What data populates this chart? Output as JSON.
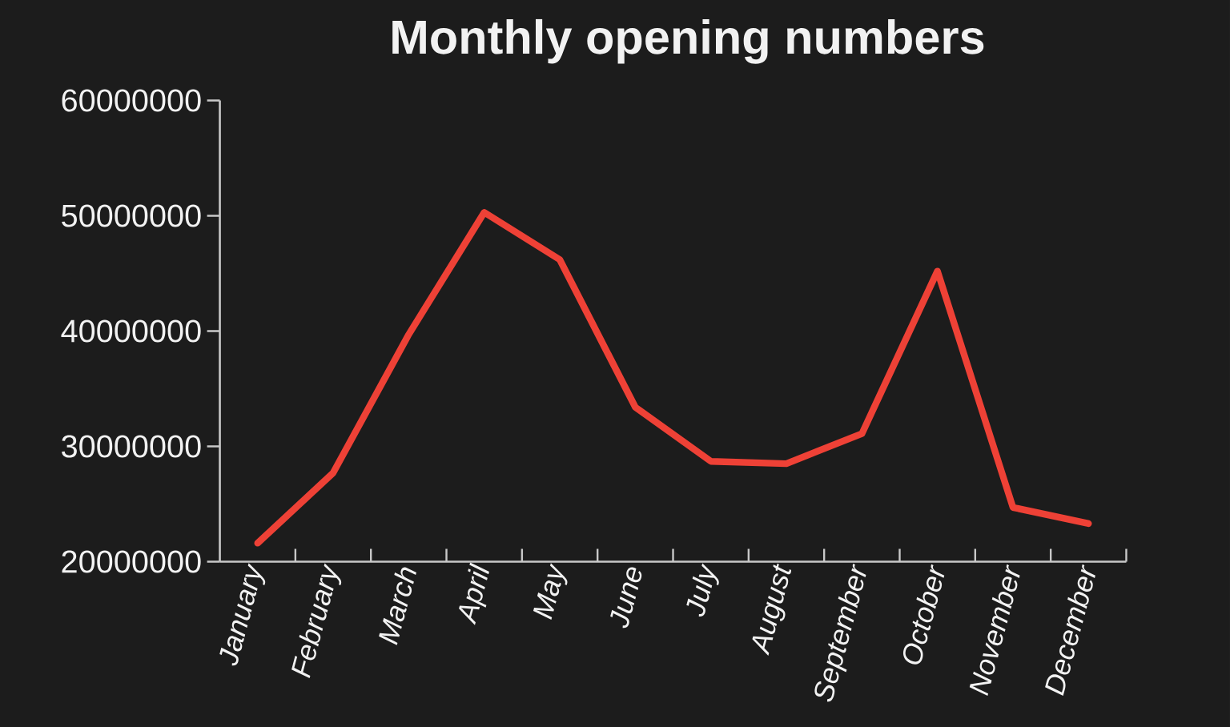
{
  "chart_data": {
    "type": "line",
    "title": "Monthly opening numbers",
    "categories": [
      "January",
      "February",
      "March",
      "April",
      "May",
      "June",
      "July",
      "August",
      "September",
      "October",
      "November",
      "December"
    ],
    "series": [
      {
        "color": "#ee4136",
        "values": [
          21600000,
          27700000,
          39700000,
          50300000,
          46200000,
          33400000,
          28700000,
          28500000,
          31100000,
          45200000,
          24700000,
          23300000
        ]
      }
    ],
    "ylim": [
      20000000,
      60000000
    ],
    "yticks": [
      20000000,
      30000000,
      40000000,
      50000000,
      60000000
    ],
    "marker": "none",
    "line_style": "solid"
  }
}
